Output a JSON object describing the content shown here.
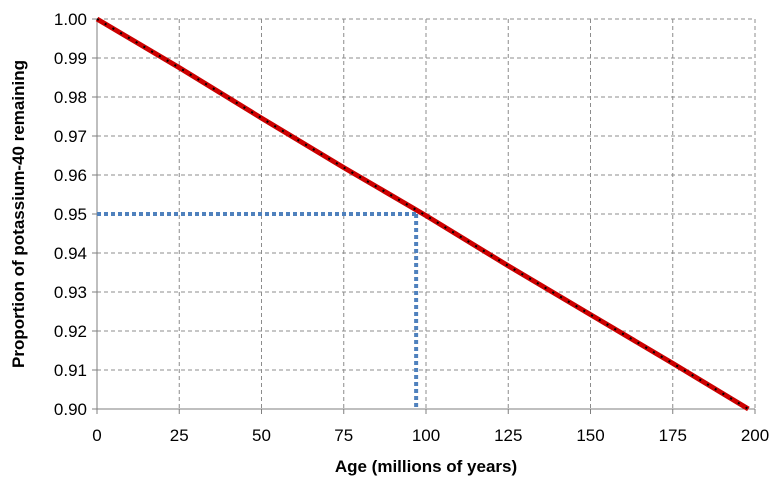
{
  "chart_data": {
    "type": "line",
    "xlabel": "Age (millions of years)",
    "ylabel": "Proportion of potassium-40 remaining",
    "xlim": [
      0,
      200
    ],
    "ylim": [
      0.9,
      1.0
    ],
    "x_ticks": [
      "0",
      "25",
      "50",
      "75",
      "100",
      "125",
      "150",
      "175",
      "200"
    ],
    "y_ticks": [
      "0.90",
      "0.91",
      "0.92",
      "0.93",
      "0.94",
      "0.95",
      "0.96",
      "0.97",
      "0.98",
      "0.99",
      "1.00"
    ],
    "grid": true,
    "series": [
      {
        "color": "#cc0000",
        "style": "solid",
        "overlay": "black-dotted",
        "points": [
          [
            0,
            1.0
          ],
          [
            25,
            0.9875
          ],
          [
            50,
            0.9746
          ],
          [
            75,
            0.9619
          ],
          [
            100,
            0.9496
          ],
          [
            125,
            0.9367
          ],
          [
            150,
            0.9242
          ],
          [
            175,
            0.9117
          ],
          [
            198,
            0.9
          ]
        ]
      }
    ],
    "annotations": [
      {
        "type": "reference-line",
        "color": "#4f81bd",
        "style": "dotted",
        "x": 97,
        "y": 0.95
      }
    ]
  }
}
